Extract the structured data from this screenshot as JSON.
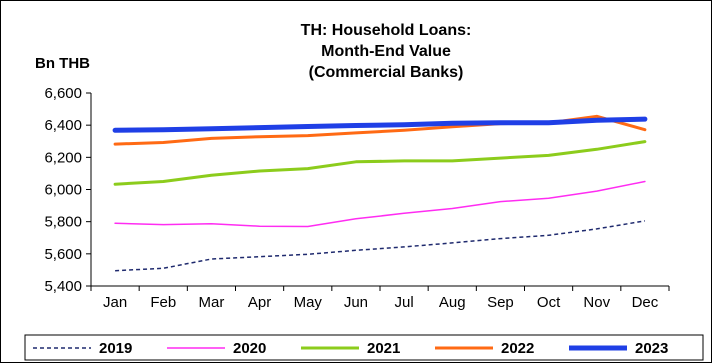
{
  "chart_data": {
    "type": "line",
    "title_lines": [
      "TH: Household Loans:",
      "Month-End Value",
      "(Commercial Banks)"
    ],
    "ylabel": "Bn THB",
    "xlabel": "",
    "categories": [
      "Jan",
      "Feb",
      "Mar",
      "Apr",
      "May",
      "Jun",
      "Jul",
      "Aug",
      "Sep",
      "Oct",
      "Nov",
      "Dec"
    ],
    "ylim": [
      5400,
      6600
    ],
    "yticks": [
      5400,
      5600,
      5800,
      6000,
      6200,
      6400,
      6600
    ],
    "ytick_labels": [
      "5,400",
      "5,600",
      "5,800",
      "6,000",
      "6,200",
      "6,400",
      "6,600"
    ],
    "grid": false,
    "legend_position": "bottom",
    "series": [
      {
        "name": "2019",
        "color": "#1f2a6e",
        "dashed": true,
        "width": 1.5,
        "values": [
          5495,
          5510,
          5568,
          5582,
          5597,
          5622,
          5643,
          5668,
          5695,
          5715,
          5755,
          5805
        ]
      },
      {
        "name": "2020",
        "color": "#ff2cf2",
        "dashed": false,
        "width": 1.5,
        "values": [
          5790,
          5782,
          5787,
          5772,
          5770,
          5818,
          5852,
          5882,
          5925,
          5945,
          5990,
          6050
        ]
      },
      {
        "name": "2021",
        "color": "#8ccc1c",
        "dashed": false,
        "width": 3,
        "values": [
          6033,
          6050,
          6088,
          6115,
          6130,
          6172,
          6178,
          6178,
          6195,
          6212,
          6250,
          6298
        ]
      },
      {
        "name": "2022",
        "color": "#ff6a14",
        "dashed": false,
        "width": 3,
        "values": [
          6282,
          6292,
          6318,
          6328,
          6335,
          6352,
          6368,
          6390,
          6410,
          6415,
          6455,
          6372
        ]
      },
      {
        "name": "2023",
        "color": "#1f3fe6",
        "dashed": false,
        "width": 5,
        "values": [
          6368,
          6372,
          6378,
          6385,
          6392,
          6398,
          6402,
          6412,
          6415,
          6415,
          6430,
          6438
        ]
      }
    ]
  }
}
